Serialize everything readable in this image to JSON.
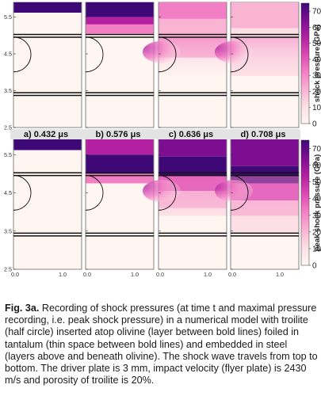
{
  "chart_data": {
    "type": "heatmap",
    "colormap": [
      "#fff6f1",
      "#fde0e6",
      "#f9b4d4",
      "#f27fc4",
      "#dd4ab4",
      "#b321a2",
      "#7d0e92",
      "#3f0877"
    ],
    "colorbar": {
      "range": [
        0,
        75
      ],
      "ticks": [
        "0",
        "10",
        "20",
        "30",
        "40",
        "50",
        "60",
        "70"
      ],
      "labels": [
        "shock pressure (GPa)",
        "peak shock pressure (GPa)"
      ]
    },
    "y_ticks": [
      "2.5",
      "3.5",
      "4.5",
      "5.5"
    ],
    "x_ticks": [
      "0.0",
      "1.0"
    ],
    "panel_labels": [
      {
        "letter": "a)",
        "time": "0.432 μs"
      },
      {
        "letter": "b)",
        "time": "0.576 μs"
      },
      {
        "letter": "c)",
        "time": "0.636 μs"
      },
      {
        "letter": "d)",
        "time": "0.708 μs"
      }
    ],
    "rows": [
      {
        "quantity": "shock pressure (GPa)"
      },
      {
        "quantity": "peak shock pressure (GPa)"
      }
    ]
  },
  "caption": {
    "label": "Fig. 3a.",
    "text": " Recording of shock pressures (at time t and maximal pressure recording, i.e. peak shock pressure) in a numerical model with troilite (half circle) inserted atop olivine (layer between bold lines) foiled in tantalum (thin space between bold lines) and embedded in steel (layers above and beneath olivine). The shock wave travels from top to bottom. The driver plate is 3 mm, impact velocity (flyer plate) is 2430 m/s and porosity of troilite is 20%."
  }
}
